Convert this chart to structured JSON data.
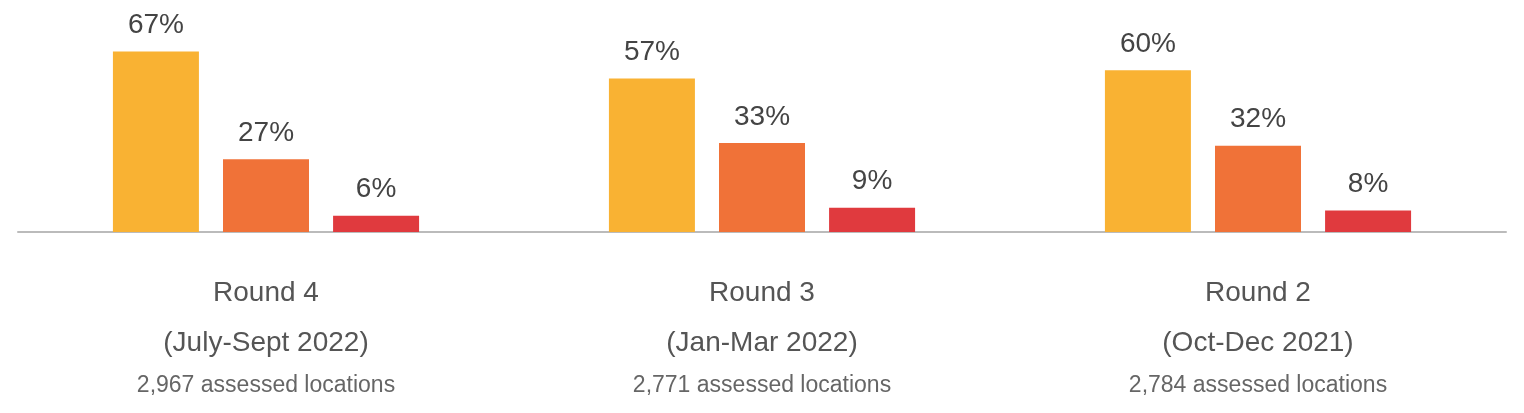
{
  "chart_data": {
    "type": "bar",
    "categories": [
      "Round 4\n(July-Sept 2022)\n2,967 assessed locations",
      "Round 3\n(Jan-Mar 2022)\n2,771 assessed locations",
      "Round 2\n(Oct-Dec 2021)\n2,784 assessed locations"
    ],
    "series": [
      {
        "color": "#f9b233",
        "values": [
          67,
          57,
          60
        ],
        "value_labels": [
          "67%",
          "57%",
          "60%"
        ]
      },
      {
        "color": "#f07238",
        "values": [
          27,
          33,
          32
        ],
        "value_labels": [
          "27%",
          "33%",
          "32%"
        ]
      },
      {
        "color": "#e03a3e",
        "values": [
          6,
          9,
          8
        ],
        "value_labels": [
          "6%",
          "9%",
          "8%"
        ]
      }
    ]
  }
}
